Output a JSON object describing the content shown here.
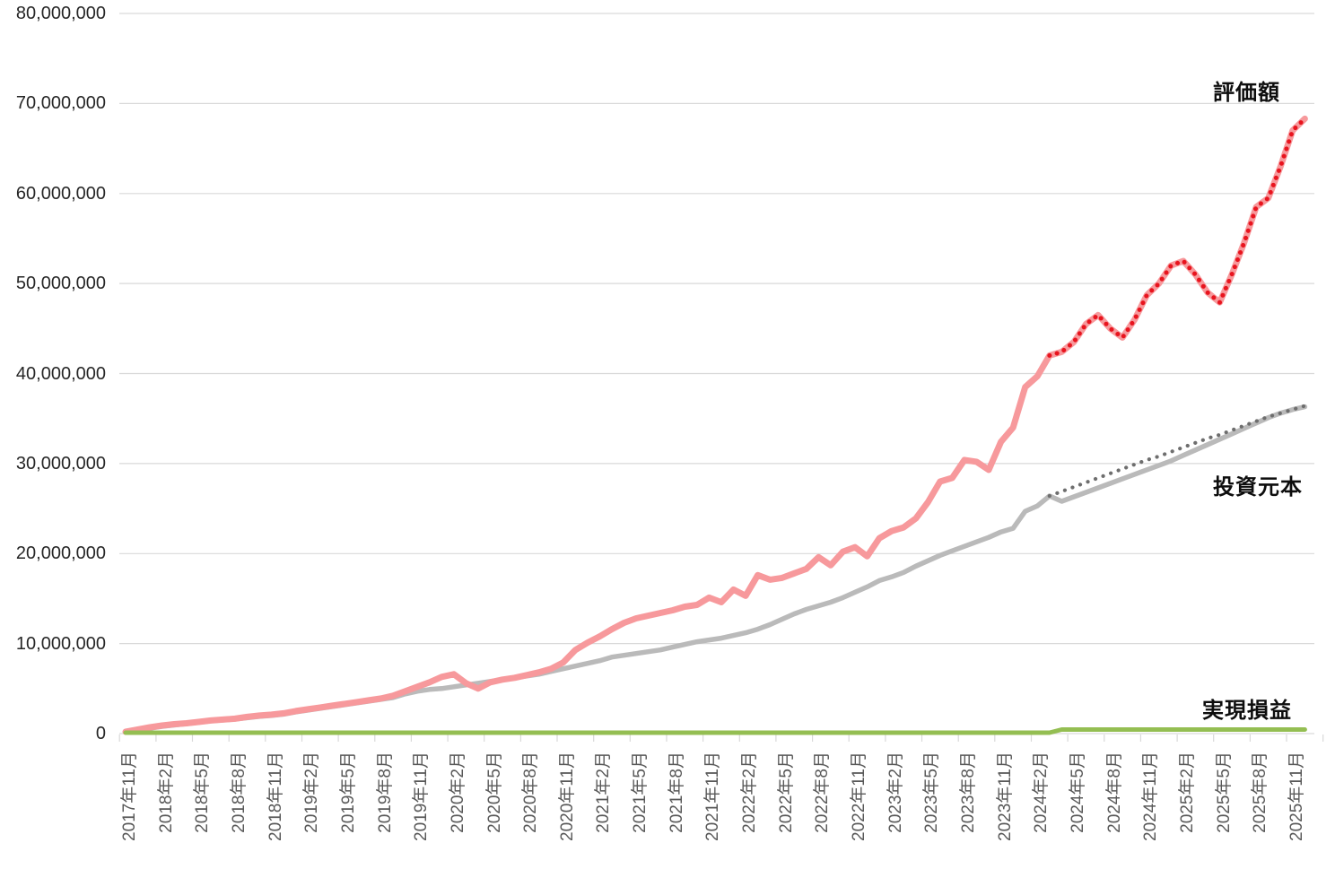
{
  "chart_data": {
    "type": "line",
    "title": "",
    "unit": "yen (series values stored in millions of yen)",
    "grid": "horizontal-only",
    "legend_position": "end-of-line labels",
    "y_axis": {
      "min": 0,
      "max": 80000000,
      "tick_interval": 10000000,
      "tick_labels": [
        "0",
        "10,000,000",
        "20,000,000",
        "30,000,000",
        "40,000,000",
        "50,000,000",
        "60,000,000",
        "70,000,000",
        "80,000,000"
      ]
    },
    "x_axis": {
      "start_month": "2017年11月",
      "end_month": "2025年12月",
      "interval": "monthly",
      "tick_labels": [
        "2017年11月",
        "2018年2月",
        "2018年5月",
        "2018年8月",
        "2018年11月",
        "2019年2月",
        "2019年5月",
        "2019年8月",
        "2019年11月",
        "2020年2月",
        "2020年5月",
        "2020年8月",
        "2020年11月",
        "2021年2月",
        "2021年5月",
        "2021年8月",
        "2021年11月",
        "2022年2月",
        "2022年5月",
        "2022年8月",
        "2022年11月",
        "2023年2月",
        "2023年5月",
        "2023年8月",
        "2023年11月",
        "2024年2月",
        "2024年5月",
        "2024年8月",
        "2024年11月",
        "2025年2月",
        "2025年5月",
        "2025年8月",
        "2025年11月"
      ]
    },
    "series": [
      {
        "id": "principal",
        "name": "投資元本",
        "style": "solid",
        "color": "#bababa",
        "width": 5.5,
        "start_index": 0,
        "values": [
          0.2,
          0.4,
          0.6,
          0.8,
          0.95,
          1.1,
          1.25,
          1.4,
          1.5,
          1.6,
          1.75,
          1.9,
          2.0,
          2.15,
          2.4,
          2.6,
          2.8,
          3.0,
          3.2,
          3.4,
          3.6,
          3.8,
          4.0,
          4.4,
          4.7,
          4.9,
          5.0,
          5.2,
          5.4,
          5.6,
          5.8,
          6.0,
          6.2,
          6.4,
          6.6,
          6.9,
          7.2,
          7.5,
          7.8,
          8.1,
          8.5,
          8.7,
          8.9,
          9.1,
          9.3,
          9.6,
          9.9,
          10.2,
          10.4,
          10.6,
          10.9,
          11.2,
          11.6,
          12.1,
          12.7,
          13.3,
          13.8,
          14.2,
          14.6,
          15.1,
          15.7,
          16.3,
          17.0,
          17.4,
          17.9,
          18.6,
          19.2,
          19.8,
          20.3,
          20.8,
          21.3,
          21.8,
          22.4,
          22.8,
          24.7,
          25.3,
          26.4,
          25.8,
          26.3,
          26.8,
          27.3,
          27.8,
          28.3,
          28.8,
          29.3,
          29.8,
          30.3,
          30.9,
          31.5,
          32.1,
          32.7,
          33.3,
          33.9,
          34.5,
          35.1,
          35.6,
          36.0,
          36.3
        ]
      },
      {
        "id": "principal-dotted",
        "name": "投資元本（点線）",
        "style": "dotted",
        "color": "#6e6e6e",
        "width": 4.2,
        "dot_gap": 9,
        "start_index": 76,
        "values": [
          26.4,
          26.9,
          27.4,
          27.9,
          28.4,
          28.9,
          29.4,
          29.9,
          30.4,
          30.8,
          31.3,
          31.8,
          32.3,
          32.8,
          33.2,
          33.7,
          34.2,
          34.7,
          35.2,
          35.6,
          36.0,
          36.4
        ]
      },
      {
        "id": "valuation",
        "name": "評価額",
        "style": "solid",
        "color": "#f7999c",
        "width": 7,
        "start_index": 0,
        "values": [
          0.2,
          0.45,
          0.7,
          0.9,
          1.05,
          1.15,
          1.3,
          1.45,
          1.55,
          1.65,
          1.85,
          2.0,
          2.1,
          2.25,
          2.5,
          2.7,
          2.9,
          3.1,
          3.3,
          3.5,
          3.7,
          3.9,
          4.2,
          4.7,
          5.2,
          5.7,
          6.3,
          6.6,
          5.6,
          5.0,
          5.7,
          6.0,
          6.2,
          6.5,
          6.8,
          7.2,
          7.9,
          9.3,
          10.1,
          10.8,
          11.6,
          12.3,
          12.8,
          13.1,
          13.4,
          13.7,
          14.1,
          14.3,
          15.1,
          14.6,
          16.0,
          15.3,
          17.6,
          17.1,
          17.3,
          17.8,
          18.3,
          19.6,
          18.7,
          20.2,
          20.7,
          19.7,
          21.7,
          22.5,
          22.9,
          23.9,
          25.7,
          28.0,
          28.4,
          30.4,
          30.2,
          29.3,
          32.4,
          34.0,
          38.5,
          39.7,
          42.0,
          42.4,
          43.5,
          45.5,
          46.5,
          45.0,
          44.0,
          46.0,
          48.7,
          50.0,
          52.0,
          52.5,
          51.0,
          49.0,
          47.9,
          51.0,
          54.5,
          58.5,
          59.5,
          63.0,
          67.0,
          68.3
        ]
      },
      {
        "id": "valuation-dotted",
        "name": "評価額（点線）",
        "style": "dotted",
        "color": "#e8141e",
        "width": 5,
        "dot_gap": 8.5,
        "start_index": 76,
        "values": [
          42.0,
          42.4,
          43.5,
          45.5,
          46.5,
          45.0,
          44.0,
          46.0,
          48.7,
          50.0,
          52.0,
          52.5,
          51.0,
          49.0,
          47.9,
          51.0,
          54.5,
          58.5,
          59.5,
          63.0,
          67.0,
          68.3
        ]
      },
      {
        "id": "realized",
        "name": "実現損益",
        "style": "solid",
        "color": "#94be52",
        "width": 5,
        "start_index": 0,
        "values": [
          0.1,
          0.1,
          0.1,
          0.1,
          0.1,
          0.1,
          0.1,
          0.1,
          0.1,
          0.1,
          0.1,
          0.1,
          0.1,
          0.1,
          0.1,
          0.1,
          0.1,
          0.1,
          0.1,
          0.1,
          0.1,
          0.1,
          0.1,
          0.1,
          0.1,
          0.1,
          0.1,
          0.1,
          0.1,
          0.1,
          0.1,
          0.1,
          0.1,
          0.1,
          0.1,
          0.1,
          0.1,
          0.1,
          0.1,
          0.1,
          0.1,
          0.1,
          0.1,
          0.1,
          0.1,
          0.1,
          0.1,
          0.1,
          0.1,
          0.1,
          0.1,
          0.1,
          0.1,
          0.1,
          0.1,
          0.1,
          0.1,
          0.1,
          0.1,
          0.1,
          0.1,
          0.1,
          0.1,
          0.1,
          0.1,
          0.1,
          0.1,
          0.1,
          0.1,
          0.1,
          0.1,
          0.1,
          0.1,
          0.1,
          0.1,
          0.1,
          0.1,
          0.45,
          0.45,
          0.45,
          0.45,
          0.45,
          0.45,
          0.45,
          0.45,
          0.45,
          0.45,
          0.45,
          0.45,
          0.45,
          0.45,
          0.45,
          0.45,
          0.45,
          0.45,
          0.45,
          0.45,
          0.45
        ]
      }
    ],
    "annotations": {
      "valuation_label": "評価額",
      "principal_label": "投資元本",
      "realized_label": "実現損益"
    },
    "colors": {
      "gridline": "#d9d9d9",
      "y_tick_text": "#262626",
      "x_tick_text": "#595959",
      "series_label_text": "#0d0d0d"
    }
  }
}
